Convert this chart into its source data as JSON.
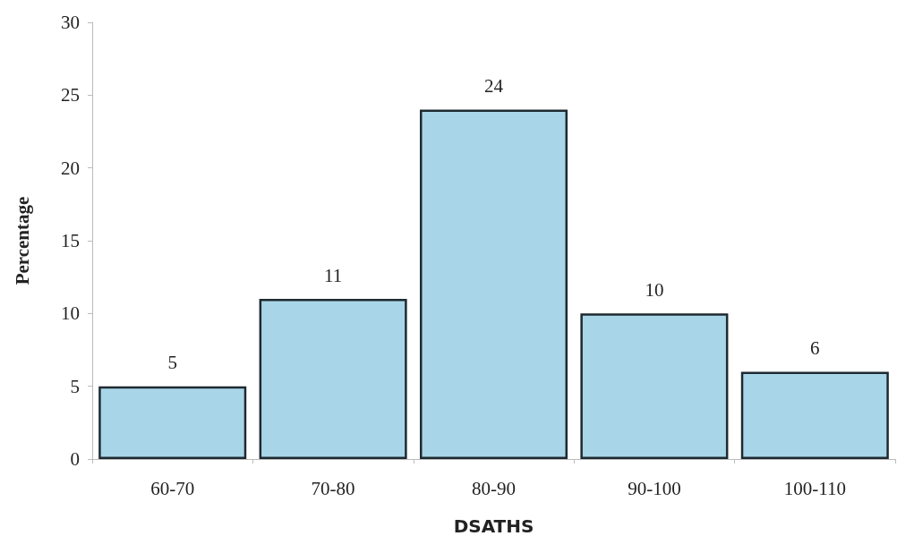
{
  "chart_data": {
    "type": "bar",
    "xlabel": "DSATHS",
    "ylabel": "Percentage",
    "categories": [
      "60-70",
      "70-80",
      "80-90",
      "90-100",
      "100-110"
    ],
    "values": [
      5,
      11,
      24,
      10,
      6
    ],
    "color": "#a8d6e8",
    "ylim": [
      0,
      30
    ],
    "yticks": [
      0,
      5,
      10,
      15,
      20,
      25,
      30
    ],
    "data_labels": true,
    "grid": false
  }
}
